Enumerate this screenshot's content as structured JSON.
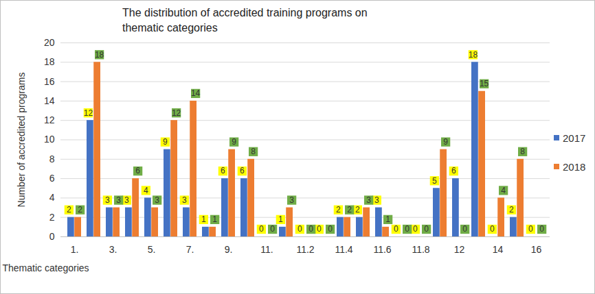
{
  "chart_data": {
    "type": "bar",
    "title": "The distribution of accredited training programs on thematic categories",
    "x_label": "Thematic categories",
    "y_label": "Number of accredited programs",
    "categories": [
      "1.",
      null,
      "3.",
      null,
      "5.",
      null,
      "7.",
      null,
      "9.",
      null,
      "11.",
      null,
      "11.2",
      null,
      "11.4",
      null,
      "11.6",
      null,
      "11.8",
      null,
      "12",
      null,
      "14",
      null,
      "16"
    ],
    "series": [
      {
        "name": "2017",
        "color": "#4472c4",
        "values": [
          2,
          12,
          3,
          3,
          4,
          9,
          3,
          1,
          6,
          6,
          0,
          1,
          0,
          0,
          2,
          2,
          3,
          0,
          0,
          5,
          6,
          18,
          0,
          2,
          0
        ]
      },
      {
        "name": "2018",
        "color": "#ed7d31",
        "values": [
          2,
          18,
          3,
          6,
          3,
          12,
          14,
          1,
          9,
          8,
          0,
          3,
          0,
          0,
          2,
          3,
          1,
          0,
          0,
          9,
          0,
          15,
          4,
          8,
          0
        ]
      }
    ],
    "ylim": [
      0,
      20
    ],
    "yticks": [
      0,
      2,
      4,
      6,
      8,
      10,
      12,
      14,
      16,
      18,
      20
    ],
    "grid": true,
    "legend": "right",
    "data_labels": true
  }
}
